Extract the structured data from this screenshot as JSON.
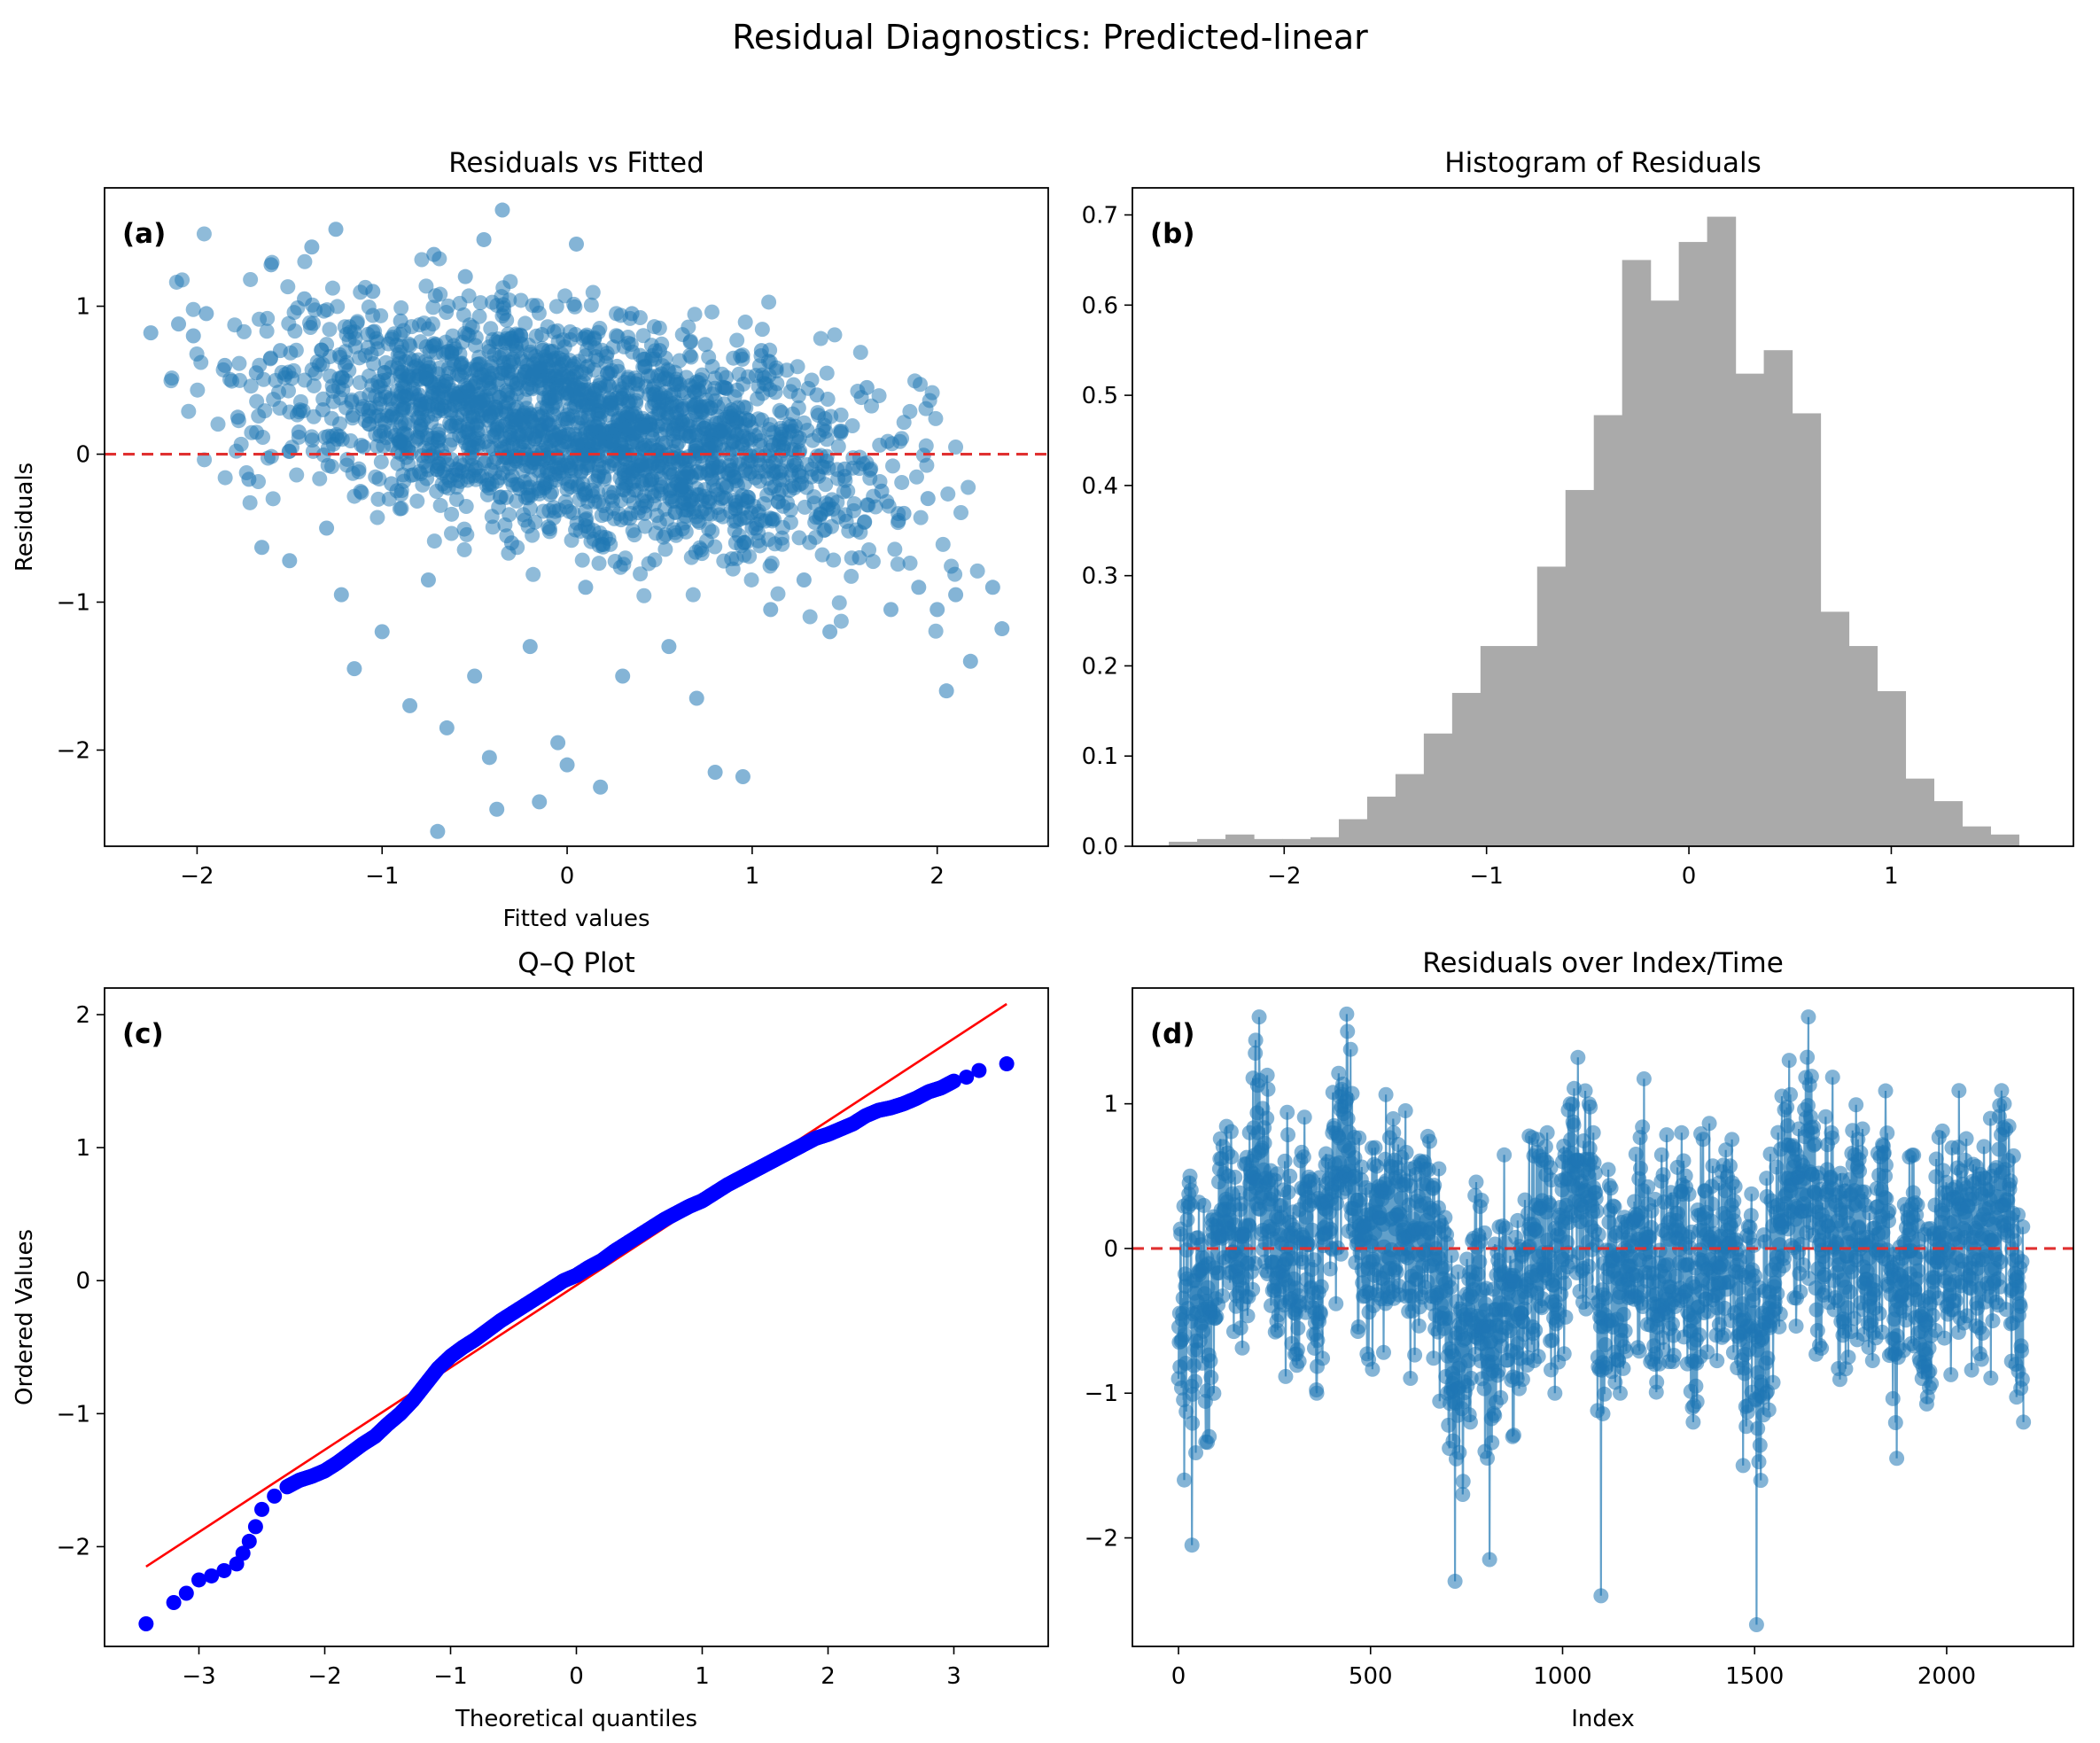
{
  "figure": {
    "title": "Residual Diagnostics: Predicted-linear"
  },
  "colors": {
    "point": "#1f77b4",
    "hist": "#aaaaaa",
    "qq_point": "#0000ff",
    "ref_line": "#ff0000",
    "zero_line": "#e03030"
  },
  "chart_data": [
    {
      "panel": "(a)",
      "type": "scatter",
      "title": "Residuals vs Fitted",
      "xlabel": "Fitted values",
      "ylabel": "Residuals",
      "xlim": [
        -2.5,
        2.6
      ],
      "ylim": [
        -2.65,
        1.8
      ],
      "xticks": [
        -2,
        -1,
        0,
        1,
        2
      ],
      "yticks": [
        -2,
        -1,
        0,
        1
      ],
      "reference_line": {
        "y": 0,
        "style": "dashed",
        "color": "red"
      },
      "n_points": 2200,
      "summary": "Dense cloud; fitted values roughly -2.3 to 2.35, residuals roughly -2.55 to 1.65, downward trend in residuals as fitted values increase.",
      "points": [
        [
          -2.25,
          0.82
        ],
        [
          -2.1,
          0.88
        ],
        [
          -2.02,
          0.8
        ],
        [
          -1.95,
          0.95
        ],
        [
          -1.85,
          0.6
        ],
        [
          -1.78,
          0.25
        ],
        [
          -1.72,
          -0.17
        ],
        [
          -1.68,
          0.55
        ],
        [
          -1.65,
          -0.63
        ],
        [
          -1.6,
          1.28
        ],
        [
          -1.55,
          0.7
        ],
        [
          -1.5,
          -0.72
        ],
        [
          -1.45,
          0.15
        ],
        [
          -1.42,
          1.05
        ],
        [
          -1.38,
          1.4
        ],
        [
          -1.32,
          0.3
        ],
        [
          -1.3,
          -0.5
        ],
        [
          -1.25,
          1.52
        ],
        [
          -1.22,
          -0.95
        ],
        [
          -1.2,
          0.6
        ],
        [
          -1.15,
          -1.45
        ],
        [
          -1.1,
          0.05
        ],
        [
          -1.05,
          1.1
        ],
        [
          -1.0,
          -1.2
        ],
        [
          -0.95,
          -0.2
        ],
        [
          -0.9,
          0.9
        ],
        [
          -0.85,
          -1.7
        ],
        [
          -0.8,
          0.4
        ],
        [
          -0.75,
          -0.85
        ],
        [
          -0.72,
          1.35
        ],
        [
          -0.7,
          -2.55
        ],
        [
          -0.65,
          -1.85
        ],
        [
          -0.6,
          -0.1
        ],
        [
          -0.55,
          1.2
        ],
        [
          -0.5,
          -1.5
        ],
        [
          -0.45,
          1.45
        ],
        [
          -0.42,
          -2.05
        ],
        [
          -0.38,
          -2.4
        ],
        [
          -0.35,
          1.65
        ],
        [
          -0.3,
          -0.6
        ],
        [
          -0.25,
          0.8
        ],
        [
          -0.2,
          -1.3
        ],
        [
          -0.15,
          -2.35
        ],
        [
          -0.1,
          0.2
        ],
        [
          -0.05,
          -1.95
        ],
        [
          0.0,
          -2.1
        ],
        [
          0.05,
          1.42
        ],
        [
          0.1,
          -0.9
        ],
        [
          0.18,
          -2.25
        ],
        [
          0.22,
          0.55
        ],
        [
          0.3,
          -1.5
        ],
        [
          0.35,
          0.95
        ],
        [
          0.42,
          -0.4
        ],
        [
          0.5,
          0.7
        ],
        [
          0.55,
          -1.3
        ],
        [
          0.62,
          0.3
        ],
        [
          0.7,
          -1.65
        ],
        [
          0.8,
          -2.15
        ],
        [
          0.85,
          0.45
        ],
        [
          0.95,
          -2.18
        ],
        [
          1.0,
          -0.5
        ],
        [
          1.05,
          0.7
        ],
        [
          1.1,
          -1.05
        ],
        [
          1.2,
          0.2
        ],
        [
          1.28,
          -0.85
        ],
        [
          1.35,
          0.4
        ],
        [
          1.42,
          -1.2
        ],
        [
          1.5,
          -0.1
        ],
        [
          1.58,
          -0.7
        ],
        [
          1.62,
          0.45
        ],
        [
          1.7,
          -0.25
        ],
        [
          1.75,
          -1.05
        ],
        [
          1.82,
          -0.4
        ],
        [
          1.9,
          -0.9
        ],
        [
          1.95,
          -0.3
        ],
        [
          2.0,
          -1.05
        ],
        [
          2.05,
          -1.6
        ],
        [
          2.1,
          -0.95
        ],
        [
          2.18,
          -1.4
        ],
        [
          2.3,
          -0.9
        ],
        [
          2.35,
          -1.18
        ]
      ]
    },
    {
      "panel": "(b)",
      "type": "bar",
      "title": "Histogram of Residuals",
      "xlabel": "",
      "ylabel": "",
      "xlim": [
        -2.75,
        1.9
      ],
      "ylim": [
        0,
        0.73
      ],
      "xticks": [
        -2,
        -1,
        0,
        1
      ],
      "yticks": [
        0.0,
        0.1,
        0.2,
        0.3,
        0.4,
        0.5,
        0.6,
        0.7
      ],
      "bin_start": -2.57,
      "bin_width": 0.14,
      "values": [
        0.005,
        0.008,
        0.013,
        0.008,
        0.008,
        0.01,
        0.03,
        0.055,
        0.08,
        0.125,
        0.17,
        0.222,
        0.222,
        0.31,
        0.395,
        0.478,
        0.65,
        0.605,
        0.67,
        0.698,
        0.524,
        0.55,
        0.48,
        0.26,
        0.222,
        0.172,
        0.075,
        0.05,
        0.022,
        0.013
      ]
    },
    {
      "panel": "(c)",
      "type": "scatter",
      "title": "Q–Q Plot",
      "xlabel": "Theoretical quantiles",
      "ylabel": "Ordered Values",
      "xlim": [
        -3.75,
        3.75
      ],
      "ylim": [
        -2.75,
        2.2
      ],
      "xticks": [
        -3,
        -2,
        -1,
        0,
        1,
        2,
        3
      ],
      "yticks": [
        -2,
        -1,
        0,
        1,
        2
      ],
      "reference_line": {
        "x": [
          -3.42,
          3.42
        ],
        "y": [
          -2.15,
          2.08
        ]
      },
      "points": [
        [
          -3.42,
          -2.58
        ],
        [
          -3.2,
          -2.42
        ],
        [
          -3.1,
          -2.35
        ],
        [
          -3.0,
          -2.25
        ],
        [
          -2.9,
          -2.22
        ],
        [
          -2.8,
          -2.18
        ],
        [
          -2.7,
          -2.13
        ],
        [
          -2.65,
          -2.05
        ],
        [
          -2.6,
          -1.96
        ],
        [
          -2.55,
          -1.85
        ],
        [
          -2.5,
          -1.72
        ],
        [
          -2.4,
          -1.62
        ],
        [
          -2.3,
          -1.55
        ],
        [
          -2.2,
          -1.5
        ],
        [
          -2.1,
          -1.47
        ],
        [
          -2.0,
          -1.43
        ],
        [
          -1.9,
          -1.37
        ],
        [
          -1.8,
          -1.3
        ],
        [
          -1.7,
          -1.23
        ],
        [
          -1.6,
          -1.17
        ],
        [
          -1.5,
          -1.08
        ],
        [
          -1.4,
          -1.0
        ],
        [
          -1.3,
          -0.9
        ],
        [
          -1.2,
          -0.78
        ],
        [
          -1.1,
          -0.66
        ],
        [
          -1.0,
          -0.57
        ],
        [
          -0.9,
          -0.5
        ],
        [
          -0.8,
          -0.44
        ],
        [
          -0.7,
          -0.37
        ],
        [
          -0.6,
          -0.3
        ],
        [
          -0.5,
          -0.24
        ],
        [
          -0.4,
          -0.18
        ],
        [
          -0.3,
          -0.12
        ],
        [
          -0.2,
          -0.06
        ],
        [
          -0.1,
          0.0
        ],
        [
          0.0,
          0.04
        ],
        [
          0.1,
          0.1
        ],
        [
          0.2,
          0.15
        ],
        [
          0.3,
          0.22
        ],
        [
          0.4,
          0.28
        ],
        [
          0.5,
          0.34
        ],
        [
          0.6,
          0.4
        ],
        [
          0.7,
          0.46
        ],
        [
          0.8,
          0.51
        ],
        [
          0.9,
          0.56
        ],
        [
          1.0,
          0.6
        ],
        [
          1.1,
          0.66
        ],
        [
          1.2,
          0.72
        ],
        [
          1.3,
          0.77
        ],
        [
          1.4,
          0.82
        ],
        [
          1.5,
          0.87
        ],
        [
          1.6,
          0.92
        ],
        [
          1.7,
          0.97
        ],
        [
          1.8,
          1.02
        ],
        [
          1.9,
          1.07
        ],
        [
          2.0,
          1.1
        ],
        [
          2.1,
          1.14
        ],
        [
          2.2,
          1.18
        ],
        [
          2.3,
          1.24
        ],
        [
          2.4,
          1.28
        ],
        [
          2.5,
          1.3
        ],
        [
          2.6,
          1.33
        ],
        [
          2.7,
          1.37
        ],
        [
          2.8,
          1.42
        ],
        [
          2.9,
          1.45
        ],
        [
          3.0,
          1.5
        ],
        [
          3.1,
          1.53
        ],
        [
          3.2,
          1.58
        ],
        [
          3.42,
          1.63
        ]
      ]
    },
    {
      "panel": "(d)",
      "type": "line",
      "title": "Residuals over Index/Time",
      "xlabel": "Index",
      "ylabel": "",
      "xlim": [
        -120,
        2330
      ],
      "ylim": [
        -2.75,
        1.8
      ],
      "xticks": [
        0,
        500,
        1000,
        1500,
        2000
      ],
      "yticks": [
        -2,
        -1,
        0,
        1
      ],
      "reference_line": {
        "y": 0,
        "style": "dashed",
        "color": "red"
      },
      "n_points": 2200,
      "summary": "Noisy index series of ~2200 residuals with slow oscillation; peaks near indices 200, 450, 1600; troughs near 750-800, 1100, 1500.",
      "points": [
        [
          0,
          -0.9
        ],
        [
          15,
          -1.6
        ],
        [
          30,
          0.5
        ],
        [
          35,
          -2.05
        ],
        [
          50,
          -0.7
        ],
        [
          80,
          -1.3
        ],
        [
          100,
          0.2
        ],
        [
          130,
          0.5
        ],
        [
          150,
          -0.4
        ],
        [
          170,
          0.1
        ],
        [
          185,
          0.8
        ],
        [
          200,
          1.35
        ],
        [
          210,
          1.6
        ],
        [
          230,
          0.9
        ],
        [
          260,
          0.2
        ],
        [
          290,
          0.5
        ],
        [
          310,
          -0.7
        ],
        [
          330,
          0.4
        ],
        [
          360,
          -1.0
        ],
        [
          390,
          0.6
        ],
        [
          420,
          1.05
        ],
        [
          440,
          1.5
        ],
        [
          460,
          0.5
        ],
        [
          490,
          -0.3
        ],
        [
          520,
          0.4
        ],
        [
          560,
          0.8
        ],
        [
          600,
          0.3
        ],
        [
          640,
          0.6
        ],
        [
          670,
          0.0
        ],
        [
          700,
          -1.0
        ],
        [
          720,
          -2.3
        ],
        [
          740,
          -1.7
        ],
        [
          760,
          -1.2
        ],
        [
          790,
          -0.9
        ],
        [
          810,
          -2.15
        ],
        [
          840,
          -0.6
        ],
        [
          870,
          -1.3
        ],
        [
          900,
          -0.3
        ],
        [
          930,
          0.3
        ],
        [
          960,
          0.8
        ],
        [
          980,
          -1.0
        ],
        [
          1000,
          0.6
        ],
        [
          1020,
          1.0
        ],
        [
          1060,
          0.4
        ],
        [
          1080,
          0.8
        ],
        [
          1100,
          -2.4
        ],
        [
          1120,
          -0.5
        ],
        [
          1150,
          -1.0
        ],
        [
          1180,
          -0.3
        ],
        [
          1210,
          0.4
        ],
        [
          1240,
          -0.8
        ],
        [
          1280,
          0.2
        ],
        [
          1310,
          0.8
        ],
        [
          1340,
          -1.2
        ],
        [
          1370,
          0.4
        ],
        [
          1400,
          -0.6
        ],
        [
          1440,
          0.3
        ],
        [
          1470,
          -1.5
        ],
        [
          1490,
          -0.6
        ],
        [
          1505,
          -2.6
        ],
        [
          1530,
          -1.0
        ],
        [
          1560,
          0.3
        ],
        [
          1590,
          1.3
        ],
        [
          1620,
          0.6
        ],
        [
          1640,
          1.6
        ],
        [
          1670,
          0.2
        ],
        [
          1700,
          0.8
        ],
        [
          1730,
          -0.6
        ],
        [
          1760,
          0.4
        ],
        [
          1800,
          -0.4
        ],
        [
          1840,
          0.5
        ],
        [
          1870,
          -1.45
        ],
        [
          1900,
          0.2
        ],
        [
          1940,
          -0.7
        ],
        [
          1970,
          0.3
        ],
        [
          2000,
          -0.4
        ],
        [
          2030,
          0.7
        ],
        [
          2060,
          -0.1
        ],
        [
          2090,
          0.2
        ],
        [
          2120,
          -0.5
        ],
        [
          2150,
          1.0
        ],
        [
          2180,
          -0.8
        ],
        [
          2200,
          -1.2
        ]
      ]
    }
  ]
}
